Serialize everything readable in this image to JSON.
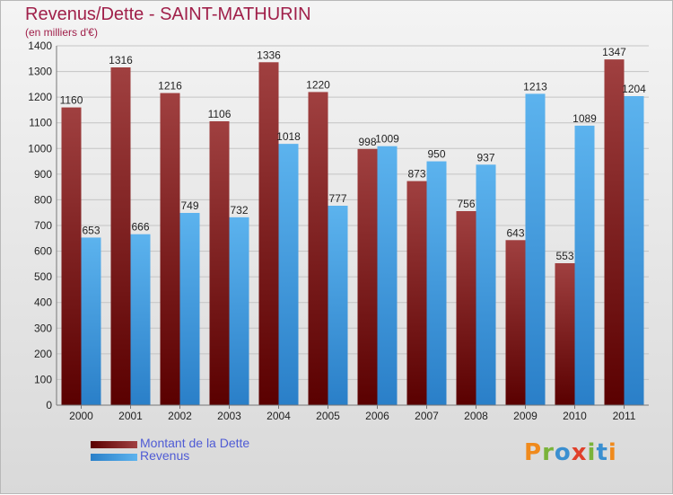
{
  "title": "Revenus/Dette - SAINT-MATHURIN",
  "subtitle": "(en milliers d'€)",
  "logo": "Proxiti",
  "colors": {
    "title": "#a0204a",
    "debt_dark": "#5a0000",
    "debt_light": "#a04040",
    "revenue_dark": "#2a7fc8",
    "revenue_light": "#5cb3ee",
    "legend_text": "#4f5bd5"
  },
  "chart_data": {
    "type": "bar",
    "title": "Revenus/Dette - SAINT-MATHURIN",
    "subtitle": "(en milliers d'€)",
    "categories": [
      "2000",
      "2001",
      "2002",
      "2003",
      "2004",
      "2005",
      "2006",
      "2007",
      "2008",
      "2009",
      "2010",
      "2011"
    ],
    "series": [
      {
        "name": "Montant de la Dette",
        "values": [
          1160,
          1316,
          1216,
          1106,
          1336,
          1220,
          998,
          873,
          756,
          643,
          553,
          1347
        ]
      },
      {
        "name": "Revenus",
        "values": [
          653,
          666,
          749,
          732,
          1018,
          777,
          1009,
          950,
          937,
          1213,
          1089,
          1204
        ]
      }
    ],
    "ylim": [
      0,
      1400
    ],
    "yticks": [
      0,
      100,
      200,
      300,
      400,
      500,
      600,
      700,
      800,
      900,
      1000,
      1100,
      1200,
      1300,
      1400
    ],
    "grid": true,
    "legend_position": "bottom-left",
    "data_labels": true
  }
}
